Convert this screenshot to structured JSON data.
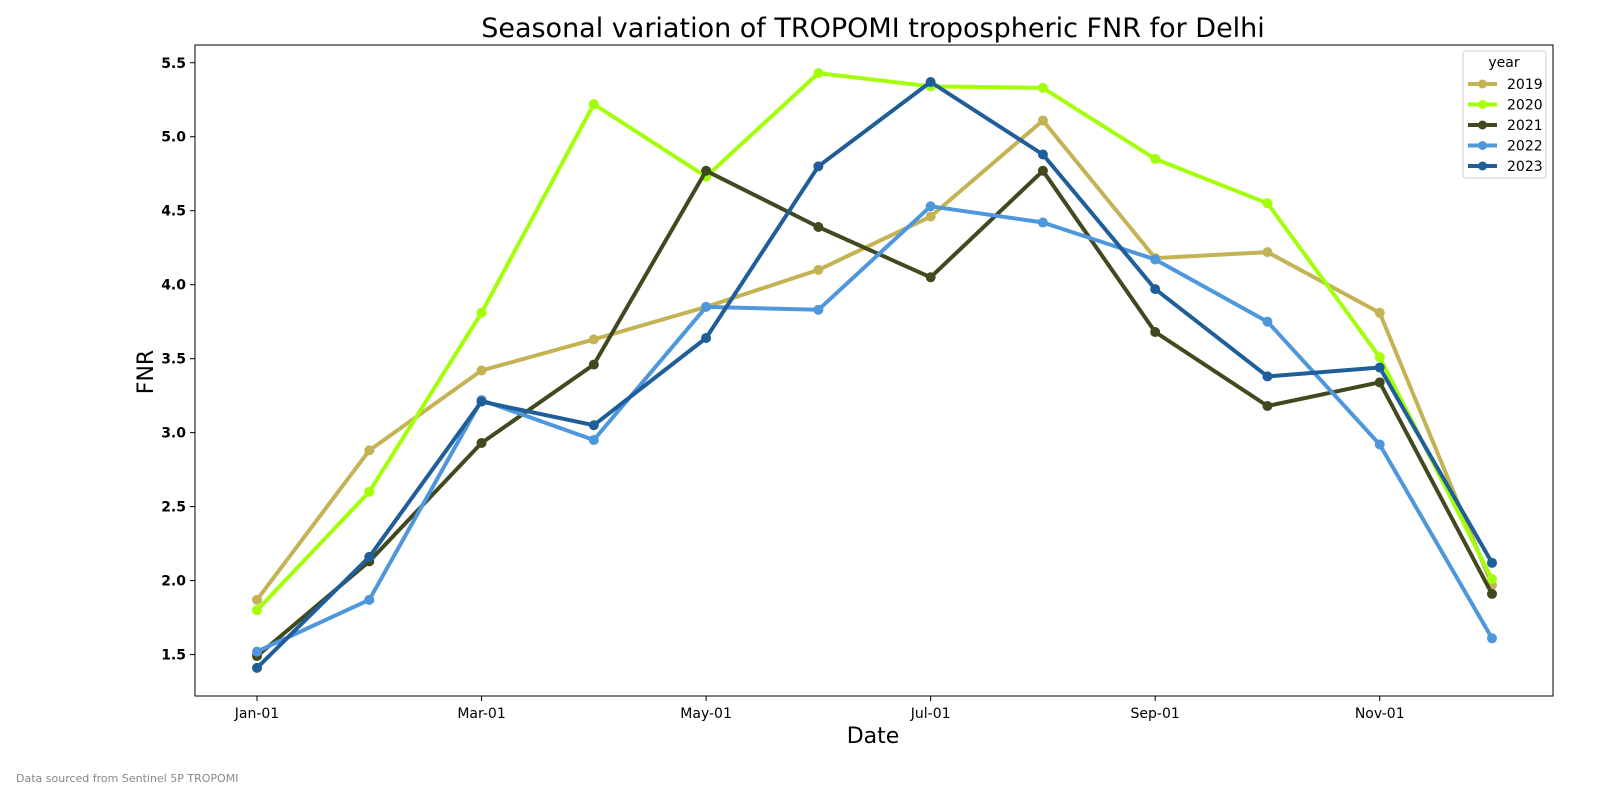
{
  "source_note": "Data sourced from Sentinel 5P TROPOMI",
  "chart_data": {
    "type": "line",
    "title": "Seasonal variation of TROPOMI tropospheric FNR for Delhi",
    "xlabel": "Date",
    "ylabel": "FNR",
    "x": [
      "Jan-01",
      "Feb-01",
      "Mar-01",
      "Apr-01",
      "May-01",
      "Jun-01",
      "Jul-01",
      "Aug-01",
      "Sep-01",
      "Oct-01",
      "Nov-01",
      "Dec-01"
    ],
    "x_tick_labels": [
      "Jan-01",
      "Mar-01",
      "May-01",
      "Jul-01",
      "Sep-01",
      "Nov-01"
    ],
    "y_ticks": [
      "1.5",
      "2.0",
      "2.5",
      "3.0",
      "3.5",
      "4.0",
      "4.5",
      "5.0",
      "5.5"
    ],
    "ylim": [
      1.22,
      5.62
    ],
    "grid": false,
    "legend": {
      "title": "year",
      "placement": "top-right"
    },
    "series": [
      {
        "name": "2019",
        "color": "#c4b354",
        "values": [
          1.87,
          2.88,
          3.42,
          3.63,
          3.85,
          4.1,
          4.46,
          5.11,
          4.18,
          4.22,
          3.81,
          1.97
        ]
      },
      {
        "name": "2020",
        "color": "#a3ff08",
        "values": [
          1.8,
          2.6,
          3.81,
          5.22,
          4.73,
          5.43,
          5.34,
          5.33,
          4.85,
          4.55,
          3.51,
          2.01
        ]
      },
      {
        "name": "2021",
        "color": "#414a1e",
        "values": [
          1.49,
          2.13,
          2.93,
          3.46,
          4.77,
          4.39,
          4.05,
          4.77,
          3.68,
          3.18,
          3.34,
          1.91
        ]
      },
      {
        "name": "2022",
        "color": "#4e97dc",
        "values": [
          1.52,
          1.87,
          3.22,
          2.95,
          3.85,
          3.83,
          4.53,
          4.42,
          4.17,
          3.75,
          2.92,
          1.61
        ]
      },
      {
        "name": "2023",
        "color": "#1f5e99",
        "values": [
          1.41,
          2.16,
          3.21,
          3.05,
          3.64,
          4.8,
          5.37,
          4.88,
          3.97,
          3.38,
          3.44,
          2.12
        ]
      }
    ]
  }
}
